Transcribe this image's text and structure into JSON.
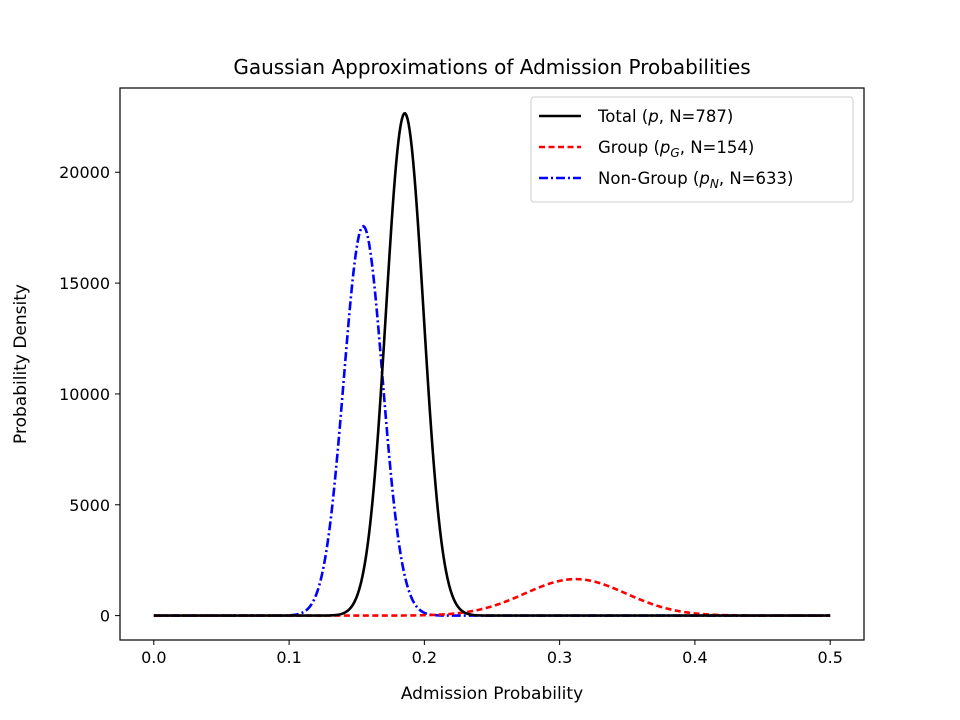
{
  "chart_data": {
    "type": "line",
    "title": "Gaussian Approximations of Admission Probabilities",
    "xlabel": "Admission Probability",
    "ylabel": "Probability Density",
    "xlim": [
      -0.025,
      0.525
    ],
    "ylim": [
      -1100,
      23800
    ],
    "xticks": [
      0.0,
      0.1,
      0.2,
      0.3,
      0.4,
      0.5
    ],
    "xtick_labels": [
      "0.0",
      "0.1",
      "0.2",
      "0.3",
      "0.4",
      "0.5"
    ],
    "yticks": [
      0,
      5000,
      10000,
      15000,
      20000
    ],
    "ytick_labels": [
      "0",
      "5000",
      "10000",
      "15000",
      "20000"
    ],
    "x_range": [
      0.0,
      0.5
    ],
    "grid": false,
    "legend_placement": "top-right",
    "curve": "N * Normal(x; mean=p, sd=sqrt(p(1-p)/N))",
    "series": [
      {
        "name": "Total (p, N=787)",
        "label_prefix": "Total (",
        "label_math": "p",
        "label_sub": "",
        "label_suffix": ", N=787)",
        "p": 0.1855,
        "N": 787,
        "peak_density": 22630,
        "color": "#000000",
        "style": "solid"
      },
      {
        "name": "Group (p_G, N=154)",
        "label_prefix": "Group (",
        "label_math": "p",
        "label_sub": "G",
        "label_suffix": ", N=154)",
        "p": 0.3117,
        "N": 154,
        "peak_density": 1645,
        "color": "#ff0000",
        "style": "dashed"
      },
      {
        "name": "Non-Group (p_N, N=633)",
        "label_prefix": "Non-Group (",
        "label_math": "p",
        "label_sub": "N",
        "label_suffix": ", N=633)",
        "p": 0.1548,
        "N": 633,
        "peak_density": 17560,
        "color": "#0000ff",
        "style": "dashdot"
      }
    ]
  }
}
